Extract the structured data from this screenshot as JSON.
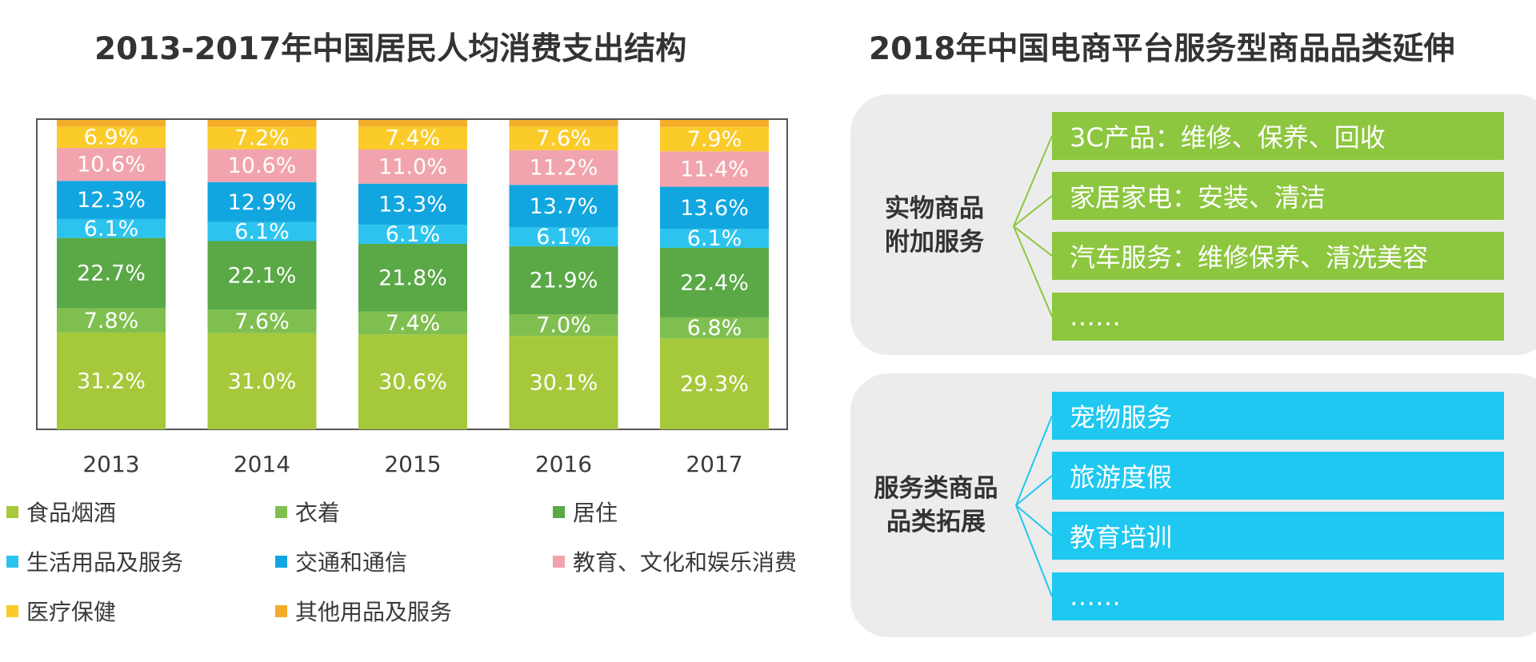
{
  "left_title": "2013-2017年中国居民人均消费支出结构",
  "right_title": "2018年中国电商平台服务型商品品类延伸",
  "chart_data": {
    "type": "bar",
    "stacked": true,
    "title": "2013-2017年中国居民人均消费支出结构",
    "categories": [
      "2013",
      "2014",
      "2015",
      "2016",
      "2017"
    ],
    "ylim": [
      0,
      100
    ],
    "grid": false,
    "legend_position": "bottom",
    "series": [
      {
        "name": "食品烟酒",
        "color": "#a6c83b",
        "values": [
          31.2,
          31.0,
          30.6,
          30.1,
          29.3
        ]
      },
      {
        "name": "衣着",
        "color": "#7fbf50",
        "values": [
          7.8,
          7.6,
          7.4,
          7.0,
          6.8
        ]
      },
      {
        "name": "居住",
        "color": "#5aa846",
        "values": [
          22.7,
          22.1,
          21.8,
          21.9,
          22.4
        ]
      },
      {
        "name": "生活用品及服务",
        "color": "#2cc4ee",
        "values": [
          6.1,
          6.1,
          6.1,
          6.1,
          6.1
        ]
      },
      {
        "name": "交通和通信",
        "color": "#11a6df",
        "values": [
          12.3,
          12.9,
          13.3,
          13.7,
          13.6
        ]
      },
      {
        "name": "教育、文化和娱乐消费",
        "color": "#f1a4ad",
        "values": [
          10.6,
          10.6,
          11.0,
          11.2,
          11.4
        ]
      },
      {
        "name": "医疗保健",
        "color": "#fbcb2a",
        "values": [
          6.9,
          7.2,
          7.4,
          7.6,
          7.9
        ]
      },
      {
        "name": "其他用品及服务",
        "color": "#f3ad2a",
        "values": [
          2.4,
          2.5,
          2.4,
          2.4,
          2.5
        ]
      }
    ],
    "label_suffix": "%",
    "labeled_series_count": 7
  },
  "groups": [
    {
      "label": "实物商品\n附加服务",
      "items": [
        "3C产品：维修、保养、回收",
        "家居家电：安装、清洁",
        "汽车服务：维修保养、清洗美容",
        "……"
      ]
    },
    {
      "label": "服务类商品\n品类拓展",
      "items": [
        "宠物服务",
        "旅游度假",
        "教育培训",
        "……"
      ]
    }
  ]
}
